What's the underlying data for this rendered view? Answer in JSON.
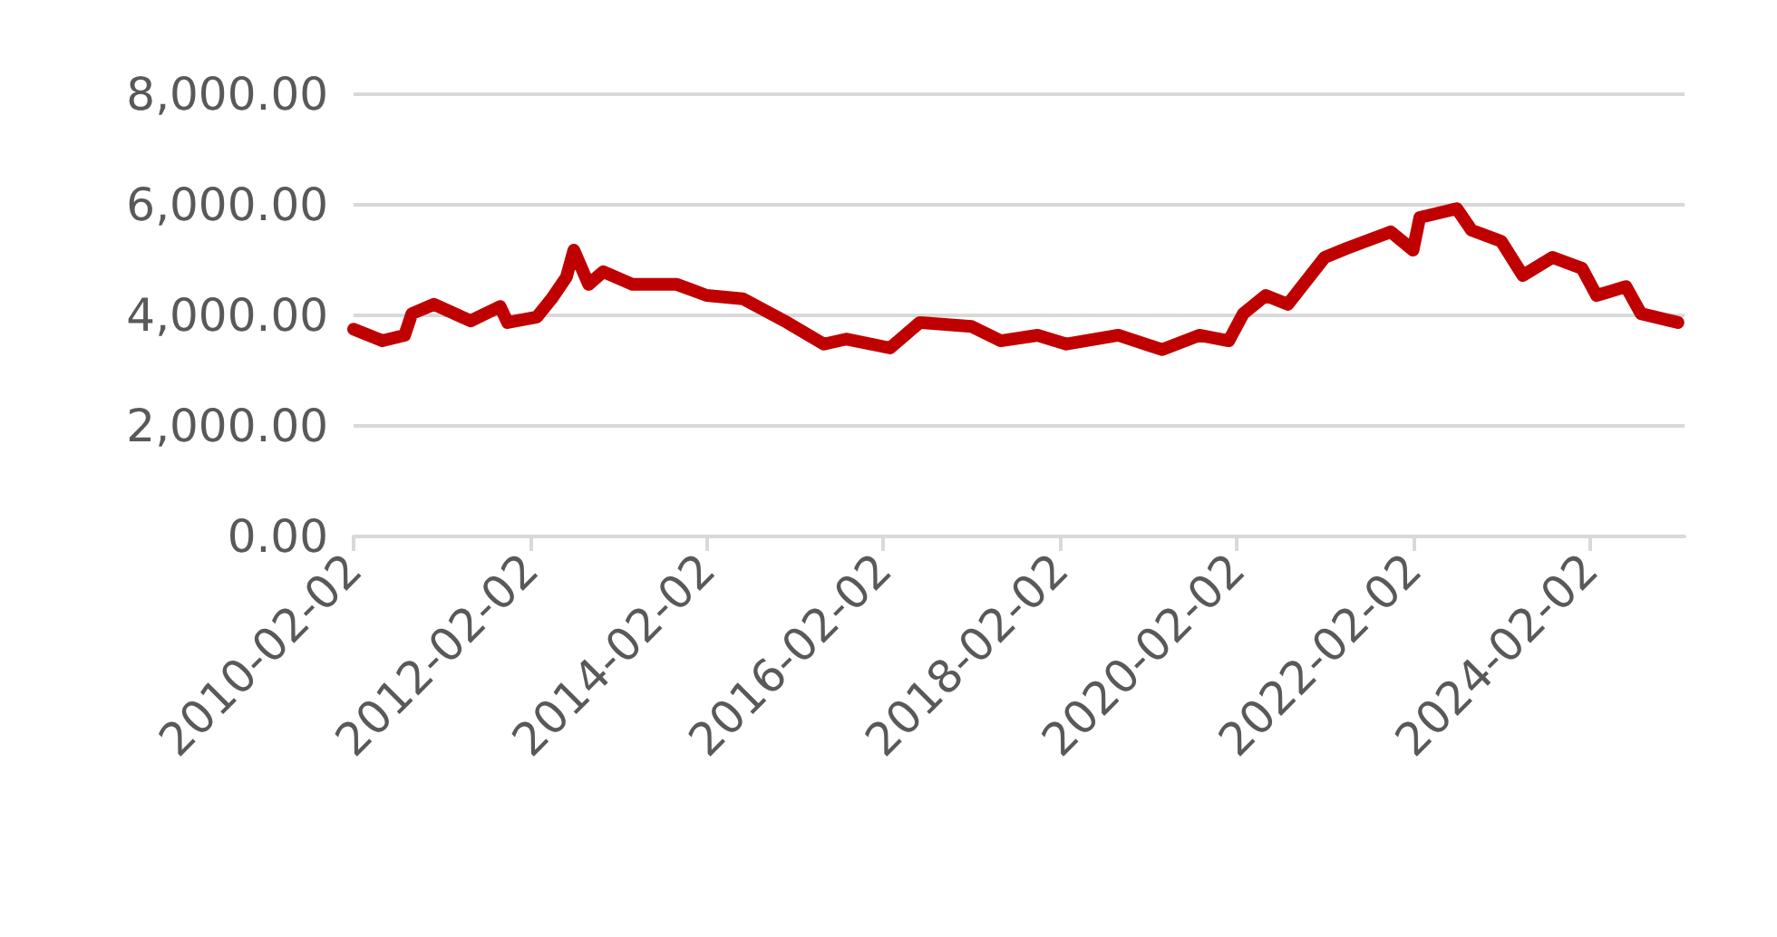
{
  "chart_data": {
    "type": "line",
    "grid": "y",
    "line_style": "solid",
    "xlim": [
      "2010-02-02",
      "2025-02-28"
    ],
    "xticks": [
      "2010-02-02",
      "2012-02-02",
      "2014-02-02",
      "2016-02-02",
      "2018-02-02",
      "2020-02-02",
      "2022-02-02",
      "2024-02-02"
    ],
    "ylim": [
      0,
      8000
    ],
    "yticks": [
      {
        "value": 0,
        "label": "0.00"
      },
      {
        "value": 2000,
        "label": "2,000.00"
      },
      {
        "value": 4000,
        "label": "4,000.00"
      },
      {
        "value": 6000,
        "label": "6,000.00"
      },
      {
        "value": 8000,
        "label": "8,000.00"
      }
    ],
    "series": [
      {
        "color": "#c00000",
        "x": [
          "2010-02-02",
          "2010-06",
          "2010-09",
          "2010-10",
          "2011-01",
          "2011-06",
          "2011-10",
          "2011-11",
          "2012-03",
          "2012-05",
          "2012-07",
          "2012-08",
          "2012-10",
          "2012-12",
          "2013-04",
          "2013-10",
          "2014-02",
          "2014-07",
          "2015-01",
          "2015-06",
          "2015-09",
          "2016-03",
          "2016-07",
          "2017-02",
          "2017-06",
          "2017-11",
          "2018-03",
          "2018-10",
          "2019-04",
          "2019-09",
          "2020-01",
          "2020-03",
          "2020-06",
          "2020-09",
          "2021-02",
          "2021-05",
          "2021-11",
          "2022-02",
          "2022-03",
          "2022-08",
          "2022-10",
          "2023-02",
          "2023-05",
          "2023-09",
          "2024-01",
          "2024-03",
          "2024-07",
          "2024-09",
          "2025-02"
        ],
        "values": [
          3750,
          3540,
          3640,
          4030,
          4200,
          3900,
          4160,
          3870,
          3970,
          4300,
          4690,
          5180,
          4560,
          4790,
          4560,
          4560,
          4360,
          4300,
          3870,
          3480,
          3570,
          3410,
          3870,
          3800,
          3540,
          3640,
          3480,
          3640,
          3380,
          3640,
          3540,
          4030,
          4360,
          4200,
          5050,
          5210,
          5510,
          5180,
          5770,
          5930,
          5540,
          5340,
          4720,
          5050,
          4850,
          4360,
          4520,
          4030,
          3870
        ]
      }
    ]
  }
}
